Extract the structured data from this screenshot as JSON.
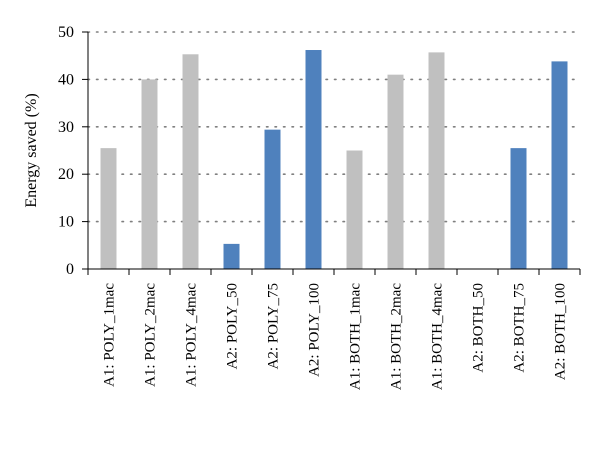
{
  "chart_data": {
    "type": "bar",
    "title": "",
    "xlabel": "",
    "ylabel": "Energy saved (%)",
    "ylim": [
      0,
      50
    ],
    "yticks": [
      0,
      10,
      20,
      30,
      40,
      50
    ],
    "grid": true,
    "categories": [
      "A1: POLY_1mac",
      "A1: POLY_2mac",
      "A1: POLY_4mac",
      "A2: POLY_50",
      "A2: POLY_75",
      "A2: POLY_100",
      "A1: BOTH_1mac",
      "A1: BOTH_2mac",
      "A1: BOTH_4mac",
      "A2: BOTH_50",
      "A2: BOTH_75",
      "A2: BOTH_100"
    ],
    "values": [
      25.5,
      40,
      45.3,
      5.3,
      29.4,
      46.2,
      25,
      41,
      45.7,
      0,
      25.5,
      43.8
    ],
    "bar_groups": [
      "A1",
      "A1",
      "A1",
      "A2",
      "A2",
      "A2",
      "A1",
      "A1",
      "A1",
      "A2",
      "A2",
      "A2"
    ],
    "colors": {
      "A1": "#c0c0c0",
      "A2": "#4f81bd",
      "grid": "#7f7f7f",
      "axis": "#000000"
    }
  }
}
